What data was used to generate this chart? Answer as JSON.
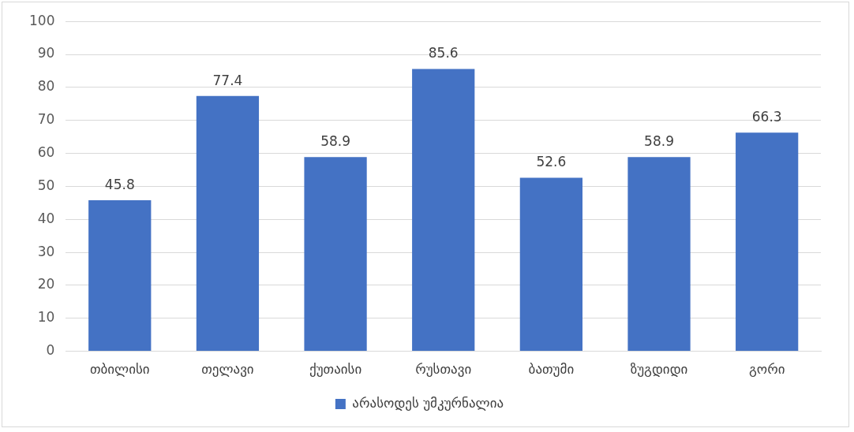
{
  "chart_data": {
    "type": "bar",
    "categories": [
      "თბილისი",
      "თელავი",
      "ქუთაისი",
      "რუსთავი",
      "ბათუმი",
      "ზუგდიდი",
      "გორი"
    ],
    "series": [
      {
        "name": "არასოდეს უმკურნალია",
        "color": "#4472c4",
        "values": [
          45.8,
          77.4,
          58.9,
          85.6,
          52.6,
          58.9,
          66.3
        ]
      }
    ],
    "ylim": [
      0,
      100
    ],
    "yticks": [
      0,
      10,
      20,
      30,
      40,
      50,
      60,
      70,
      80,
      90,
      100
    ],
    "grid": "y",
    "legend": "bottom",
    "data_labels": true
  }
}
